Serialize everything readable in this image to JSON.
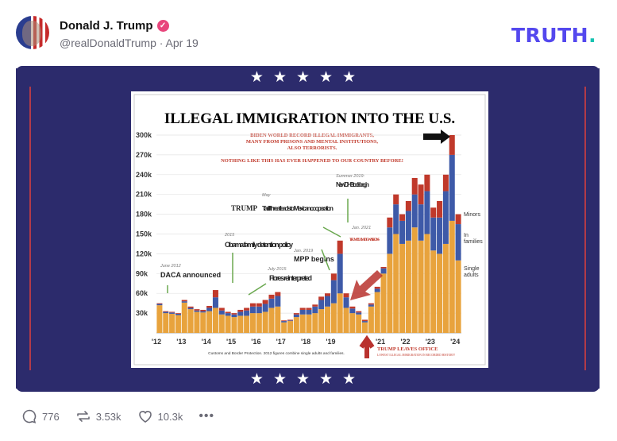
{
  "post": {
    "author_name": "Donald J. Trump",
    "handle": "@realDonaldTrump",
    "separator": "·",
    "date": "Apr 19",
    "verified_icon": "verified-badge-icon",
    "brand_logo": "TRUTH",
    "brand_dot": ".",
    "stars": "★★★★★"
  },
  "colors": {
    "brand": "#5448ee",
    "brand_dot": "#17c3b2",
    "card": "#2c2b6c",
    "frame": "#b23a48",
    "single_adults": "#e8a33d",
    "families": "#3e5aa8",
    "minors": "#c0392b"
  },
  "actions": {
    "replies": "776",
    "retruths": "3.53k",
    "likes": "10.3k",
    "more": "•••"
  },
  "chart_data": {
    "type": "bar",
    "stacked": true,
    "title": "ILLEGAL IMMIGRATION INTO THE U.S.",
    "subtitle_lines": [
      "BIDEN WORLD RECORD ILLEGAL IMMIGRANTS,",
      "MANY FROM PRISONS AND MENTAL INSTITUTIONS,",
      "ALSO TERRORISTS."
    ],
    "subtitle_2": "NOTHING LIKE THIS HAS EVER HAPPENED TO OUR COUNTRY BEFORE!",
    "y_ticks": [
      "300k",
      "270k",
      "240k",
      "210k",
      "180k",
      "150k",
      "120k",
      "90k",
      "60k",
      "30k"
    ],
    "y_tick_values": [
      300,
      270,
      240,
      210,
      180,
      150,
      120,
      90,
      60,
      30
    ],
    "ylim": [
      0,
      300
    ],
    "x_ticks": [
      "'12",
      "'13",
      "'14",
      "'15",
      "'16",
      "'17",
      "'18",
      "'19",
      "'21",
      "'22",
      "'23",
      "'24"
    ],
    "x_tick_years": [
      2012,
      2013,
      2014,
      2015,
      2016,
      2017,
      2018,
      2019,
      2021,
      2022,
      2023,
      2024
    ],
    "x_range": [
      2012,
      2024.25
    ],
    "x_period": "quarter",
    "series": [
      {
        "name": "Single adults",
        "values": [
          42,
          30,
          29,
          27,
          46,
          36,
          32,
          31,
          33,
          38,
          28,
          26,
          24,
          26,
          26,
          30,
          30,
          32,
          38,
          40,
          16,
          18,
          24,
          28,
          28,
          30,
          36,
          40,
          45,
          60,
          38,
          30,
          28,
          16,
          40,
          62,
          90,
          120,
          150,
          135,
          140,
          160,
          140,
          150,
          125,
          120,
          135,
          170,
          110
        ]
      },
      {
        "name": "In families",
        "values": [
          2,
          2,
          2,
          2,
          2,
          2,
          2,
          2,
          5,
          16,
          6,
          4,
          4,
          6,
          8,
          10,
          10,
          12,
          14,
          16,
          2,
          1,
          4,
          7,
          7,
          10,
          14,
          16,
          35,
          60,
          16,
          7,
          3,
          2,
          3,
          5,
          8,
          40,
          45,
          35,
          45,
          50,
          55,
          65,
          50,
          55,
          80,
          100,
          55
        ]
      },
      {
        "name": "Minors",
        "values": [
          1,
          1,
          1,
          1,
          2,
          2,
          2,
          2,
          3,
          11,
          4,
          2,
          2,
          3,
          4,
          5,
          5,
          6,
          6,
          6,
          1,
          1,
          2,
          3,
          3,
          3,
          5,
          4,
          10,
          20,
          6,
          3,
          2,
          2,
          2,
          3,
          2,
          15,
          15,
          10,
          15,
          25,
          30,
          25,
          15,
          25,
          25,
          30,
          15
        ]
      }
    ],
    "legend_labels": [
      "Minors",
      "In families",
      "Single adults"
    ],
    "legend_placement": "right",
    "annotations": [
      {
        "date": "June 2012",
        "label": "DACA announced"
      },
      {
        "date": "2015",
        "label": "Obama family detention policy"
      },
      {
        "date": "July 2015",
        "label": "Flores reinterpreted"
      },
      {
        "date": "May",
        "prefix": "TRUMP",
        "label": "Tariff threat leads to Mexican cooperation"
      },
      {
        "date": "Jan. 2019",
        "label": "MPP begins"
      },
      {
        "date": "Summer 2019:",
        "label": "New DHS tools begin"
      },
      {
        "date": "Jan. 2021",
        "label": "TRUMP CLAMPDOWN BEGINS"
      }
    ],
    "leaves_office": "TRUMP LEAVES OFFICE",
    "leaves_office_sub": "LOWEST ILLEGAL IMMIGRATION IN RECORDED HISTORY!",
    "source": "Customs and Border Protection. 2012 figures combine single adults and families."
  }
}
